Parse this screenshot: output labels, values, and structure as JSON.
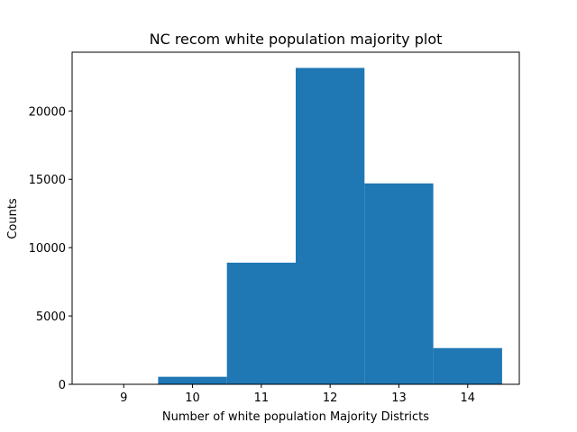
{
  "chart_data": {
    "type": "bar",
    "title": "NC recom white population majority plot",
    "xlabel": "Number of white population Majority Districts",
    "ylabel": "Counts",
    "bar_color": "#1f77b4",
    "bins": [
      {
        "from": 9.5,
        "to": 10.5,
        "value": 550
      },
      {
        "from": 10.5,
        "to": 11.5,
        "value": 8900
      },
      {
        "from": 11.5,
        "to": 12.5,
        "value": 23150
      },
      {
        "from": 12.5,
        "to": 13.5,
        "value": 14700
      },
      {
        "from": 13.5,
        "to": 14.5,
        "value": 2650
      }
    ],
    "xlim": [
      8.25,
      14.75
    ],
    "ylim": [
      0,
      24300
    ],
    "xticks": [
      9,
      10,
      11,
      12,
      13,
      14
    ],
    "yticks": [
      0,
      5000,
      10000,
      15000,
      20000
    ],
    "grid": false
  }
}
